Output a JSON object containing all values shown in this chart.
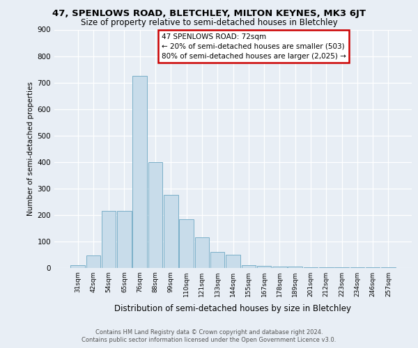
{
  "title1": "47, SPENLOWS ROAD, BLETCHLEY, MILTON KEYNES, MK3 6JT",
  "title2": "Size of property relative to semi-detached houses in Bletchley",
  "xlabel": "Distribution of semi-detached houses by size in Bletchley",
  "ylabel": "Number of semi-detached properties",
  "footer1": "Contains HM Land Registry data © Crown copyright and database right 2024.",
  "footer2": "Contains public sector information licensed under the Open Government Licence v3.0.",
  "annotation_line1": "47 SPENLOWS ROAD: 72sqm",
  "annotation_line2": "← 20% of semi-detached houses are smaller (503)",
  "annotation_line3": "80% of semi-detached houses are larger (2,025) →",
  "bar_labels": [
    "31sqm",
    "42sqm",
    "54sqm",
    "65sqm",
    "76sqm",
    "88sqm",
    "99sqm",
    "110sqm",
    "121sqm",
    "133sqm",
    "144sqm",
    "155sqm",
    "167sqm",
    "178sqm",
    "189sqm",
    "201sqm",
    "212sqm",
    "223sqm",
    "234sqm",
    "246sqm",
    "257sqm"
  ],
  "bar_values": [
    10,
    48,
    215,
    215,
    725,
    400,
    275,
    185,
    115,
    60,
    50,
    10,
    7,
    5,
    5,
    3,
    2,
    2,
    2,
    2,
    2
  ],
  "bar_color": "#c8dcea",
  "bar_edge_color": "#7aafc8",
  "ylim": [
    0,
    900
  ],
  "yticks": [
    0,
    100,
    200,
    300,
    400,
    500,
    600,
    700,
    800,
    900
  ],
  "background_color": "#e8eef5",
  "annotation_box_facecolor": "#ffffff",
  "annotation_box_edgecolor": "#cc0000",
  "grid_color": "#ffffff",
  "title1_fontsize": 9.5,
  "title2_fontsize": 8.5,
  "xlabel_fontsize": 8.5,
  "ylabel_fontsize": 7.5,
  "tick_fontsize": 7.5,
  "xtick_fontsize": 6.5,
  "footer_fontsize": 6.0,
  "ann_fontsize": 7.5
}
